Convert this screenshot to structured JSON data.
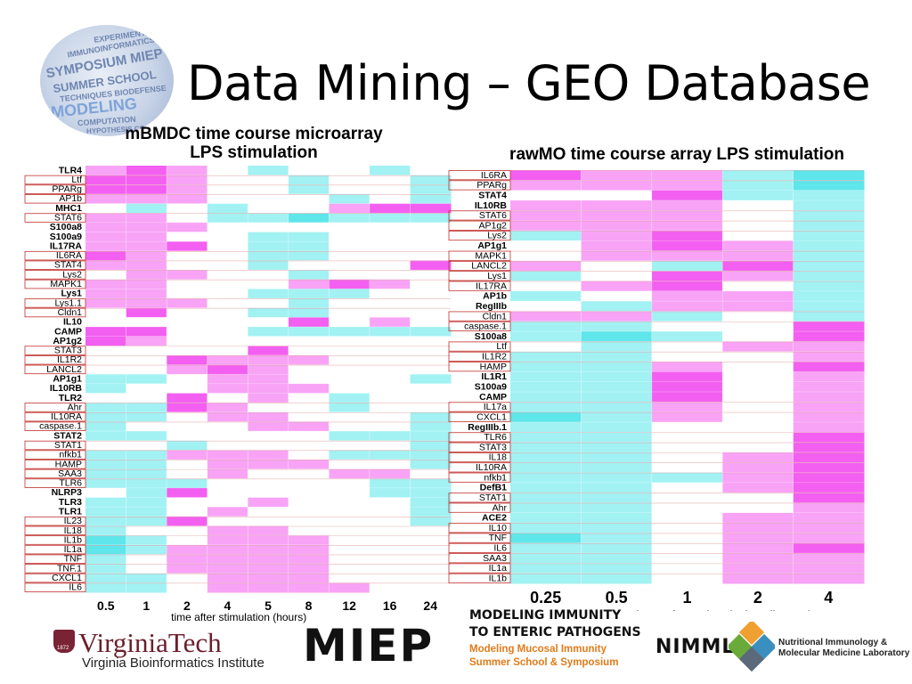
{
  "slide": {
    "title": "Data Mining – GEO Database",
    "logo_words": [
      "EXPERIMENTATION",
      "IMMUNOINFORMATICS",
      "SYMPOSIUM MIEP",
      "SUMMER SCHOOL",
      "TECHNIQUES BIODEFENSE",
      "MODELING",
      "COMPUTATION",
      "HYPOTHESIS CODE"
    ]
  },
  "footer": {
    "vt_name": "VirginiaTech",
    "vt_year": "1872",
    "vt_sub": "Virginia Bioinformatics Institute",
    "miep": "MIEP",
    "mi_line1": "MODELING IMMUNITY",
    "mi_line2": "TO ENTERIC PATHOGENS",
    "mi_line3": "Modeling Mucosal Immunity",
    "mi_line4": "Summer School & Symposium",
    "nimml": "NIMML",
    "nimml_line1": "Nutritional Immunology &",
    "nimml_line2": "Molecular Medicine Laboratory"
  },
  "colors": {
    "low": "#5ee6ea",
    "mid": "#ffffff",
    "high": "#f35ff0"
  },
  "chart_data": [
    {
      "type": "heatmap",
      "title_line1": "mBMDC time course microarray",
      "title_line2": "LPS stimulation",
      "xlabel": "time after stimulation (hours)",
      "x": [
        "0.5",
        "1",
        "2",
        "4",
        "5",
        "8",
        "12",
        "16",
        "24"
      ],
      "rows": [
        "TLR4",
        "Ltf",
        "PPARg",
        "AP1b",
        "MHC1",
        "STAT6",
        "S100a8",
        "S100a9",
        "IL17RA",
        "IL6RA",
        "STAT4",
        "Lys2",
        "MAPK1",
        "Lys1",
        "Lys1.1",
        "Cldn1",
        "IL10",
        "CAMP",
        "AP1g2",
        "STAT3",
        "IL1R2",
        "LANCL2",
        "AP1g1",
        "IL10RB",
        "TLR2",
        "Ahr",
        "IL10RA",
        "caspase.1",
        "STAT2",
        "STAT1",
        "nfkb1",
        "HAMP",
        "SAA3",
        "TLR6",
        "NLRP3",
        "TLR3",
        "TLR1",
        "IL23",
        "IL18",
        "IL1b",
        "IL1a",
        "TNF",
        "TNF.1",
        "CXCL1",
        "IL6"
      ],
      "boxed_rows": [
        "Ltf",
        "PPARg",
        "AP1b",
        "STAT6",
        "IL6RA",
        "STAT4",
        "Lys2",
        "MAPK1",
        "Lys1.1",
        "Cldn1",
        "STAT3",
        "IL1R2",
        "LANCL2",
        "Ahr",
        "IL10RA",
        "caspase.1",
        "STAT1",
        "nfkb1",
        "HAMP",
        "SAA3",
        "TLR6",
        "IL23",
        "IL18",
        "IL1b",
        "IL1a",
        "TNF",
        "TNF.1",
        "CXCL1",
        "IL6"
      ],
      "values": [
        [
          1,
          2,
          1,
          0,
          -1,
          0,
          0,
          -1,
          0
        ],
        [
          2,
          2,
          1,
          0,
          0,
          -1,
          0,
          0,
          -1
        ],
        [
          2,
          2,
          1,
          0,
          0,
          -1,
          0,
          0,
          -1
        ],
        [
          1,
          1,
          1,
          0,
          0,
          0,
          -1,
          0,
          -1
        ],
        [
          0,
          -1,
          0,
          -1,
          0,
          0,
          1,
          2,
          2
        ],
        [
          1,
          1,
          0,
          -1,
          -1,
          -2,
          -1,
          -1,
          -1
        ],
        [
          1,
          1,
          1,
          0,
          0,
          0,
          0,
          0,
          0
        ],
        [
          1,
          1,
          0,
          0,
          -1,
          -1,
          0,
          0,
          0
        ],
        [
          1,
          1,
          2,
          0,
          -1,
          -1,
          0,
          0,
          0
        ],
        [
          2,
          1,
          0,
          0,
          -1,
          -1,
          0,
          0,
          0
        ],
        [
          1,
          1,
          0,
          0,
          -1,
          0,
          0,
          0,
          2
        ],
        [
          0,
          1,
          1,
          0,
          0,
          -1,
          0,
          0,
          0
        ],
        [
          1,
          1,
          0,
          0,
          0,
          1,
          2,
          1,
          0
        ],
        [
          1,
          1,
          0,
          0,
          -1,
          -1,
          -1,
          0,
          0
        ],
        [
          1,
          1,
          1,
          0,
          0,
          -1,
          0,
          0,
          0
        ],
        [
          0,
          2,
          0,
          0,
          -1,
          -1,
          0,
          0,
          0
        ],
        [
          0,
          0,
          0,
          0,
          0,
          2,
          0,
          1,
          0
        ],
        [
          2,
          2,
          0,
          0,
          -1,
          -1,
          -1,
          -1,
          -1
        ],
        [
          2,
          1,
          0,
          0,
          0,
          0,
          0,
          0,
          0
        ],
        [
          0,
          0,
          0,
          0,
          2,
          0,
          0,
          0,
          0
        ],
        [
          0,
          0,
          2,
          1,
          1,
          1,
          0,
          0,
          0
        ],
        [
          0,
          0,
          1,
          2,
          1,
          0,
          0,
          0,
          0
        ],
        [
          -1,
          -1,
          0,
          1,
          1,
          0,
          0,
          0,
          -1
        ],
        [
          -1,
          0,
          0,
          1,
          1,
          1,
          0,
          0,
          0
        ],
        [
          0,
          0,
          2,
          0,
          1,
          0,
          -1,
          0,
          0
        ],
        [
          -1,
          -1,
          2,
          1,
          0,
          0,
          -1,
          0,
          0
        ],
        [
          -1,
          -1,
          0,
          1,
          1,
          0,
          0,
          0,
          -1
        ],
        [
          -1,
          0,
          0,
          0,
          1,
          1,
          0,
          0,
          -1
        ],
        [
          -1,
          -1,
          0,
          0,
          0,
          0,
          -1,
          -1,
          -1
        ],
        [
          0,
          0,
          -1,
          0,
          0,
          0,
          0,
          0,
          -1
        ],
        [
          -1,
          -1,
          1,
          1,
          1,
          0,
          -1,
          -1,
          -1
        ],
        [
          -1,
          -1,
          0,
          1,
          1,
          1,
          0,
          0,
          -1
        ],
        [
          -1,
          -1,
          0,
          1,
          0,
          0,
          1,
          1,
          0
        ],
        [
          -1,
          -1,
          -1,
          0,
          0,
          0,
          0,
          -1,
          -1
        ],
        [
          0,
          -1,
          2,
          0,
          0,
          0,
          0,
          -1,
          -1
        ],
        [
          -1,
          -1,
          0,
          0,
          1,
          0,
          0,
          0,
          -1
        ],
        [
          -1,
          -1,
          0,
          1,
          0,
          0,
          0,
          0,
          -1
        ],
        [
          -1,
          -1,
          2,
          0,
          0,
          0,
          0,
          0,
          -1
        ],
        [
          -1,
          0,
          0,
          1,
          1,
          0,
          0,
          0,
          0
        ],
        [
          -2,
          -1,
          0,
          1,
          1,
          1,
          0,
          0,
          0
        ],
        [
          -2,
          -1,
          1,
          1,
          1,
          1,
          0,
          0,
          0
        ],
        [
          -1,
          0,
          1,
          1,
          1,
          1,
          0,
          0,
          0
        ],
        [
          -1,
          0,
          1,
          1,
          1,
          1,
          0,
          0,
          0
        ],
        [
          -1,
          -1,
          0,
          1,
          1,
          1,
          0,
          0,
          0
        ],
        [
          -1,
          -1,
          0,
          1,
          1,
          1,
          1,
          0,
          0
        ]
      ]
    },
    {
      "type": "heatmap",
      "title_line1": "rawMO time course array LPS stimulation",
      "xlabel": "time after stimulation (hours)",
      "x": [
        "0.25",
        "0.5",
        "1",
        "2",
        "4"
      ],
      "rows": [
        "IL6RA",
        "PPARg",
        "STAT4",
        "IL10RB",
        "STAT6",
        "AP1g2",
        "Lys2",
        "AP1g1",
        "MAPK1",
        "LANCL2",
        "Lys1",
        "IL17RA",
        "AP1b",
        "RegIIIb",
        "Cldn1",
        "caspase.1",
        "S100a8",
        "Ltf",
        "IL1R2",
        "HAMP",
        "IL1R1",
        "S100a9",
        "CAMP",
        "IL17a",
        "CXCL1",
        "RegIIIb.1",
        "TLR6",
        "STAT3",
        "IL18",
        "IL10RA",
        "nfkb1",
        "DefB1",
        "STAT1",
        "Ahr",
        "ACE2",
        "IL10",
        "TNF",
        "IL6",
        "SAA3",
        "IL1a",
        "IL1b"
      ],
      "boxed_rows": [
        "IL6RA",
        "PPARg",
        "STAT6",
        "AP1g2",
        "Lys2",
        "MAPK1",
        "LANCL2",
        "Lys1",
        "IL17RA",
        "Cldn1",
        "caspase.1",
        "Ltf",
        "IL1R2",
        "HAMP",
        "IL17a",
        "CXCL1",
        "TLR6",
        "STAT3",
        "IL18",
        "IL10RA",
        "nfkb1",
        "STAT1",
        "Ahr",
        "IL10",
        "TNF",
        "IL6",
        "SAA3",
        "IL1a",
        "IL1b"
      ],
      "values": [
        [
          2,
          1,
          1,
          -1,
          -2
        ],
        [
          1,
          1,
          1,
          -1,
          -2
        ],
        [
          0,
          0,
          2,
          -1,
          -1
        ],
        [
          1,
          1,
          1,
          0,
          -1
        ],
        [
          1,
          1,
          1,
          0,
          -1
        ],
        [
          1,
          1,
          1,
          0,
          -1
        ],
        [
          -1,
          1,
          2,
          0,
          -1
        ],
        [
          0,
          1,
          2,
          1,
          -1
        ],
        [
          0,
          1,
          1,
          1,
          -1
        ],
        [
          1,
          0,
          -1,
          2,
          -1
        ],
        [
          -1,
          0,
          2,
          1,
          -1
        ],
        [
          0,
          1,
          2,
          0,
          -1
        ],
        [
          -1,
          0,
          1,
          1,
          -1
        ],
        [
          0,
          -1,
          1,
          1,
          -1
        ],
        [
          1,
          1,
          -1,
          0,
          -1
        ],
        [
          -1,
          -1,
          0,
          0,
          2
        ],
        [
          -1,
          -2,
          -1,
          0,
          2
        ],
        [
          0,
          -1,
          0,
          1,
          1
        ],
        [
          -1,
          -1,
          0,
          0,
          1
        ],
        [
          -1,
          -1,
          1,
          0,
          2
        ],
        [
          -1,
          -1,
          2,
          0,
          1
        ],
        [
          -1,
          -1,
          2,
          0,
          1
        ],
        [
          -1,
          -1,
          2,
          0,
          1
        ],
        [
          -1,
          -1,
          1,
          0,
          1
        ],
        [
          -2,
          -1,
          1,
          0,
          1
        ],
        [
          -1,
          -1,
          0,
          0,
          1
        ],
        [
          -1,
          -1,
          0,
          0,
          2
        ],
        [
          -1,
          -1,
          0,
          0,
          2
        ],
        [
          -1,
          -1,
          0,
          1,
          2
        ],
        [
          -1,
          -1,
          0,
          1,
          2
        ],
        [
          -1,
          -1,
          -1,
          1,
          2
        ],
        [
          -1,
          -1,
          0,
          1,
          2
        ],
        [
          -1,
          -1,
          0,
          0,
          2
        ],
        [
          -1,
          -1,
          0,
          0,
          1
        ],
        [
          -1,
          -1,
          0,
          1,
          1
        ],
        [
          -1,
          -1,
          0,
          1,
          1
        ],
        [
          -2,
          -1,
          0,
          1,
          1
        ],
        [
          -1,
          -1,
          0,
          1,
          2
        ],
        [
          -1,
          -1,
          0,
          1,
          1
        ],
        [
          -1,
          -1,
          0,
          1,
          1
        ],
        [
          -1,
          -1,
          0,
          1,
          1
        ]
      ]
    }
  ]
}
